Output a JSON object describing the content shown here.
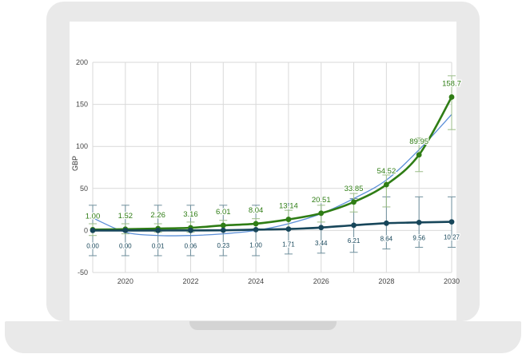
{
  "chart_data": {
    "type": "line",
    "ylabel": "GBP",
    "xlabel": "",
    "xlim": [
      2019,
      2030
    ],
    "ylim": [
      -50,
      200
    ],
    "x_ticks": [
      "2020",
      "2022",
      "2024",
      "2026",
      "2028",
      "2030"
    ],
    "y_ticks": [
      "200",
      "150",
      "100",
      "50",
      "0",
      "-50"
    ],
    "grid": true,
    "x": [
      2019,
      2020,
      2021,
      2022,
      2023,
      2024,
      2025,
      2026,
      2027,
      2028,
      2029,
      2030
    ],
    "series": [
      {
        "color": "#2f7d15",
        "values": [
          1.0,
          1.52,
          2.26,
          3.16,
          6.01,
          8.04,
          13.14,
          20.51,
          33.85,
          54.52,
          89.95,
          158.7
        ],
        "labels": [
          "1.00",
          "1.52",
          "2.26",
          "3.16",
          "6.01",
          "8.04",
          "13.14",
          "20.51",
          "33.85",
          "54.52",
          "89.95",
          "158.7"
        ],
        "error_low": [
          0,
          0,
          0,
          0,
          0,
          0,
          0,
          0,
          0,
          0,
          0,
          0
        ],
        "error_high": [
          0,
          0,
          0,
          0,
          0,
          0,
          0,
          0,
          0,
          0,
          0,
          0
        ],
        "bar_low": [
          -6,
          -4,
          -2,
          -2,
          0,
          2,
          2,
          10,
          22,
          28,
          70,
          120
        ],
        "bar_high": [
          8,
          8,
          8,
          10,
          12,
          14,
          24,
          30,
          44,
          66,
          110,
          184
        ]
      },
      {
        "color": "#17465a",
        "values": [
          0.0,
          0.0,
          0.01,
          0.06,
          0.23,
          1.0,
          1.71,
          3.44,
          6.21,
          8.64,
          9.56,
          10.27
        ],
        "labels": [
          "0.00",
          "0.00",
          "0.01",
          "0.06",
          "0.23",
          "1.00",
          "1.71",
          "3.44",
          "6.21",
          "8.64",
          "9.56",
          "10.27"
        ],
        "bar_low": [
          -30,
          -30,
          -30,
          -30,
          -30,
          -30,
          -28,
          -27,
          -26,
          -22,
          -20,
          -20
        ],
        "bar_high": [
          30,
          30,
          30,
          30,
          30,
          30,
          32,
          34,
          38,
          40,
          40,
          40
        ]
      },
      {
        "color": "#5b8fd8",
        "values": [
          15,
          -2,
          -6,
          -6,
          -4,
          0,
          8,
          20,
          38,
          60,
          96,
          138
        ]
      }
    ]
  }
}
